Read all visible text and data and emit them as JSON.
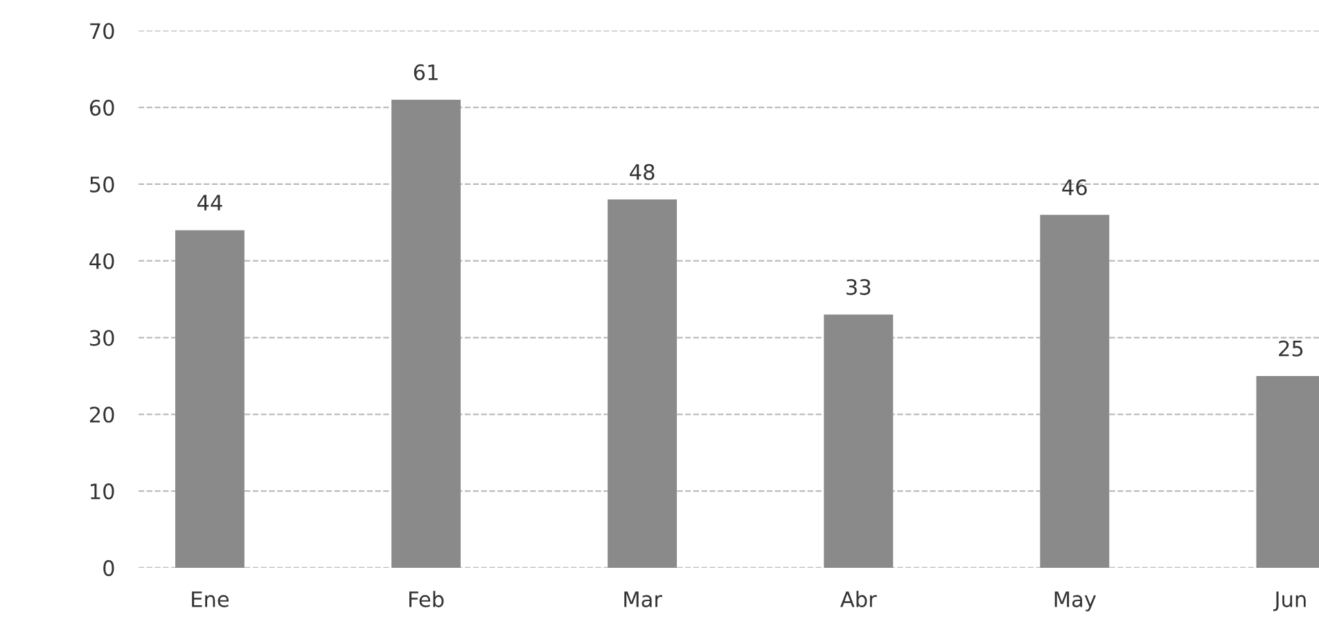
{
  "chart_data": {
    "type": "bar",
    "categories": [
      "Ene",
      "Feb",
      "Mar",
      "Abr",
      "May",
      "Jun"
    ],
    "values": [
      44,
      61,
      48,
      33,
      46,
      25
    ],
    "color": "#8a8a8a",
    "ylim": [
      0,
      70
    ],
    "yticks": [
      0,
      10,
      20,
      30,
      40,
      50,
      60,
      70
    ],
    "grid": "y",
    "data_labels": true
  }
}
